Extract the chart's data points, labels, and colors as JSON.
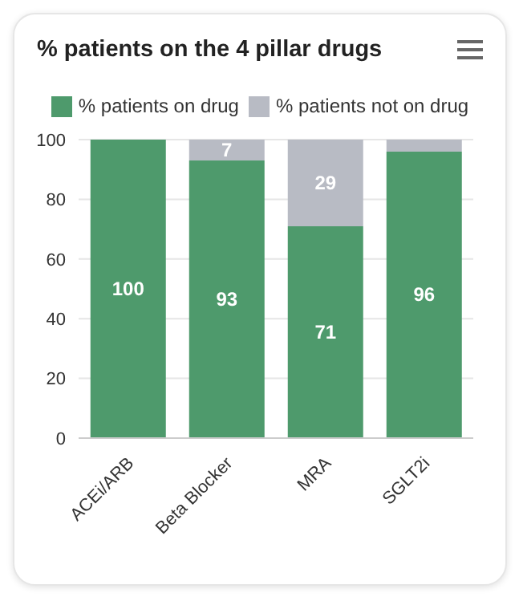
{
  "chart_data": {
    "type": "bar",
    "title": "% patients on the 4 pillar drugs",
    "categories": [
      "ACEi/ARB",
      "Beta Blocker",
      "MRA",
      "SGLT2i"
    ],
    "stacked": true,
    "series": [
      {
        "name": "% patients on drug",
        "color": "#4e9a6c",
        "values": [
          100,
          93,
          71,
          96
        ],
        "value_labels": [
          "100",
          "93",
          "71",
          "96"
        ]
      },
      {
        "name": "% patients not on drug",
        "color": "#b8bbc4",
        "values": [
          0,
          7,
          29,
          4
        ],
        "value_labels": [
          null,
          "7",
          "29",
          null
        ]
      }
    ],
    "ylim": [
      0,
      100
    ],
    "yticks": [
      0,
      20,
      40,
      60,
      80,
      100
    ],
    "grid": "y",
    "legend": "top"
  }
}
